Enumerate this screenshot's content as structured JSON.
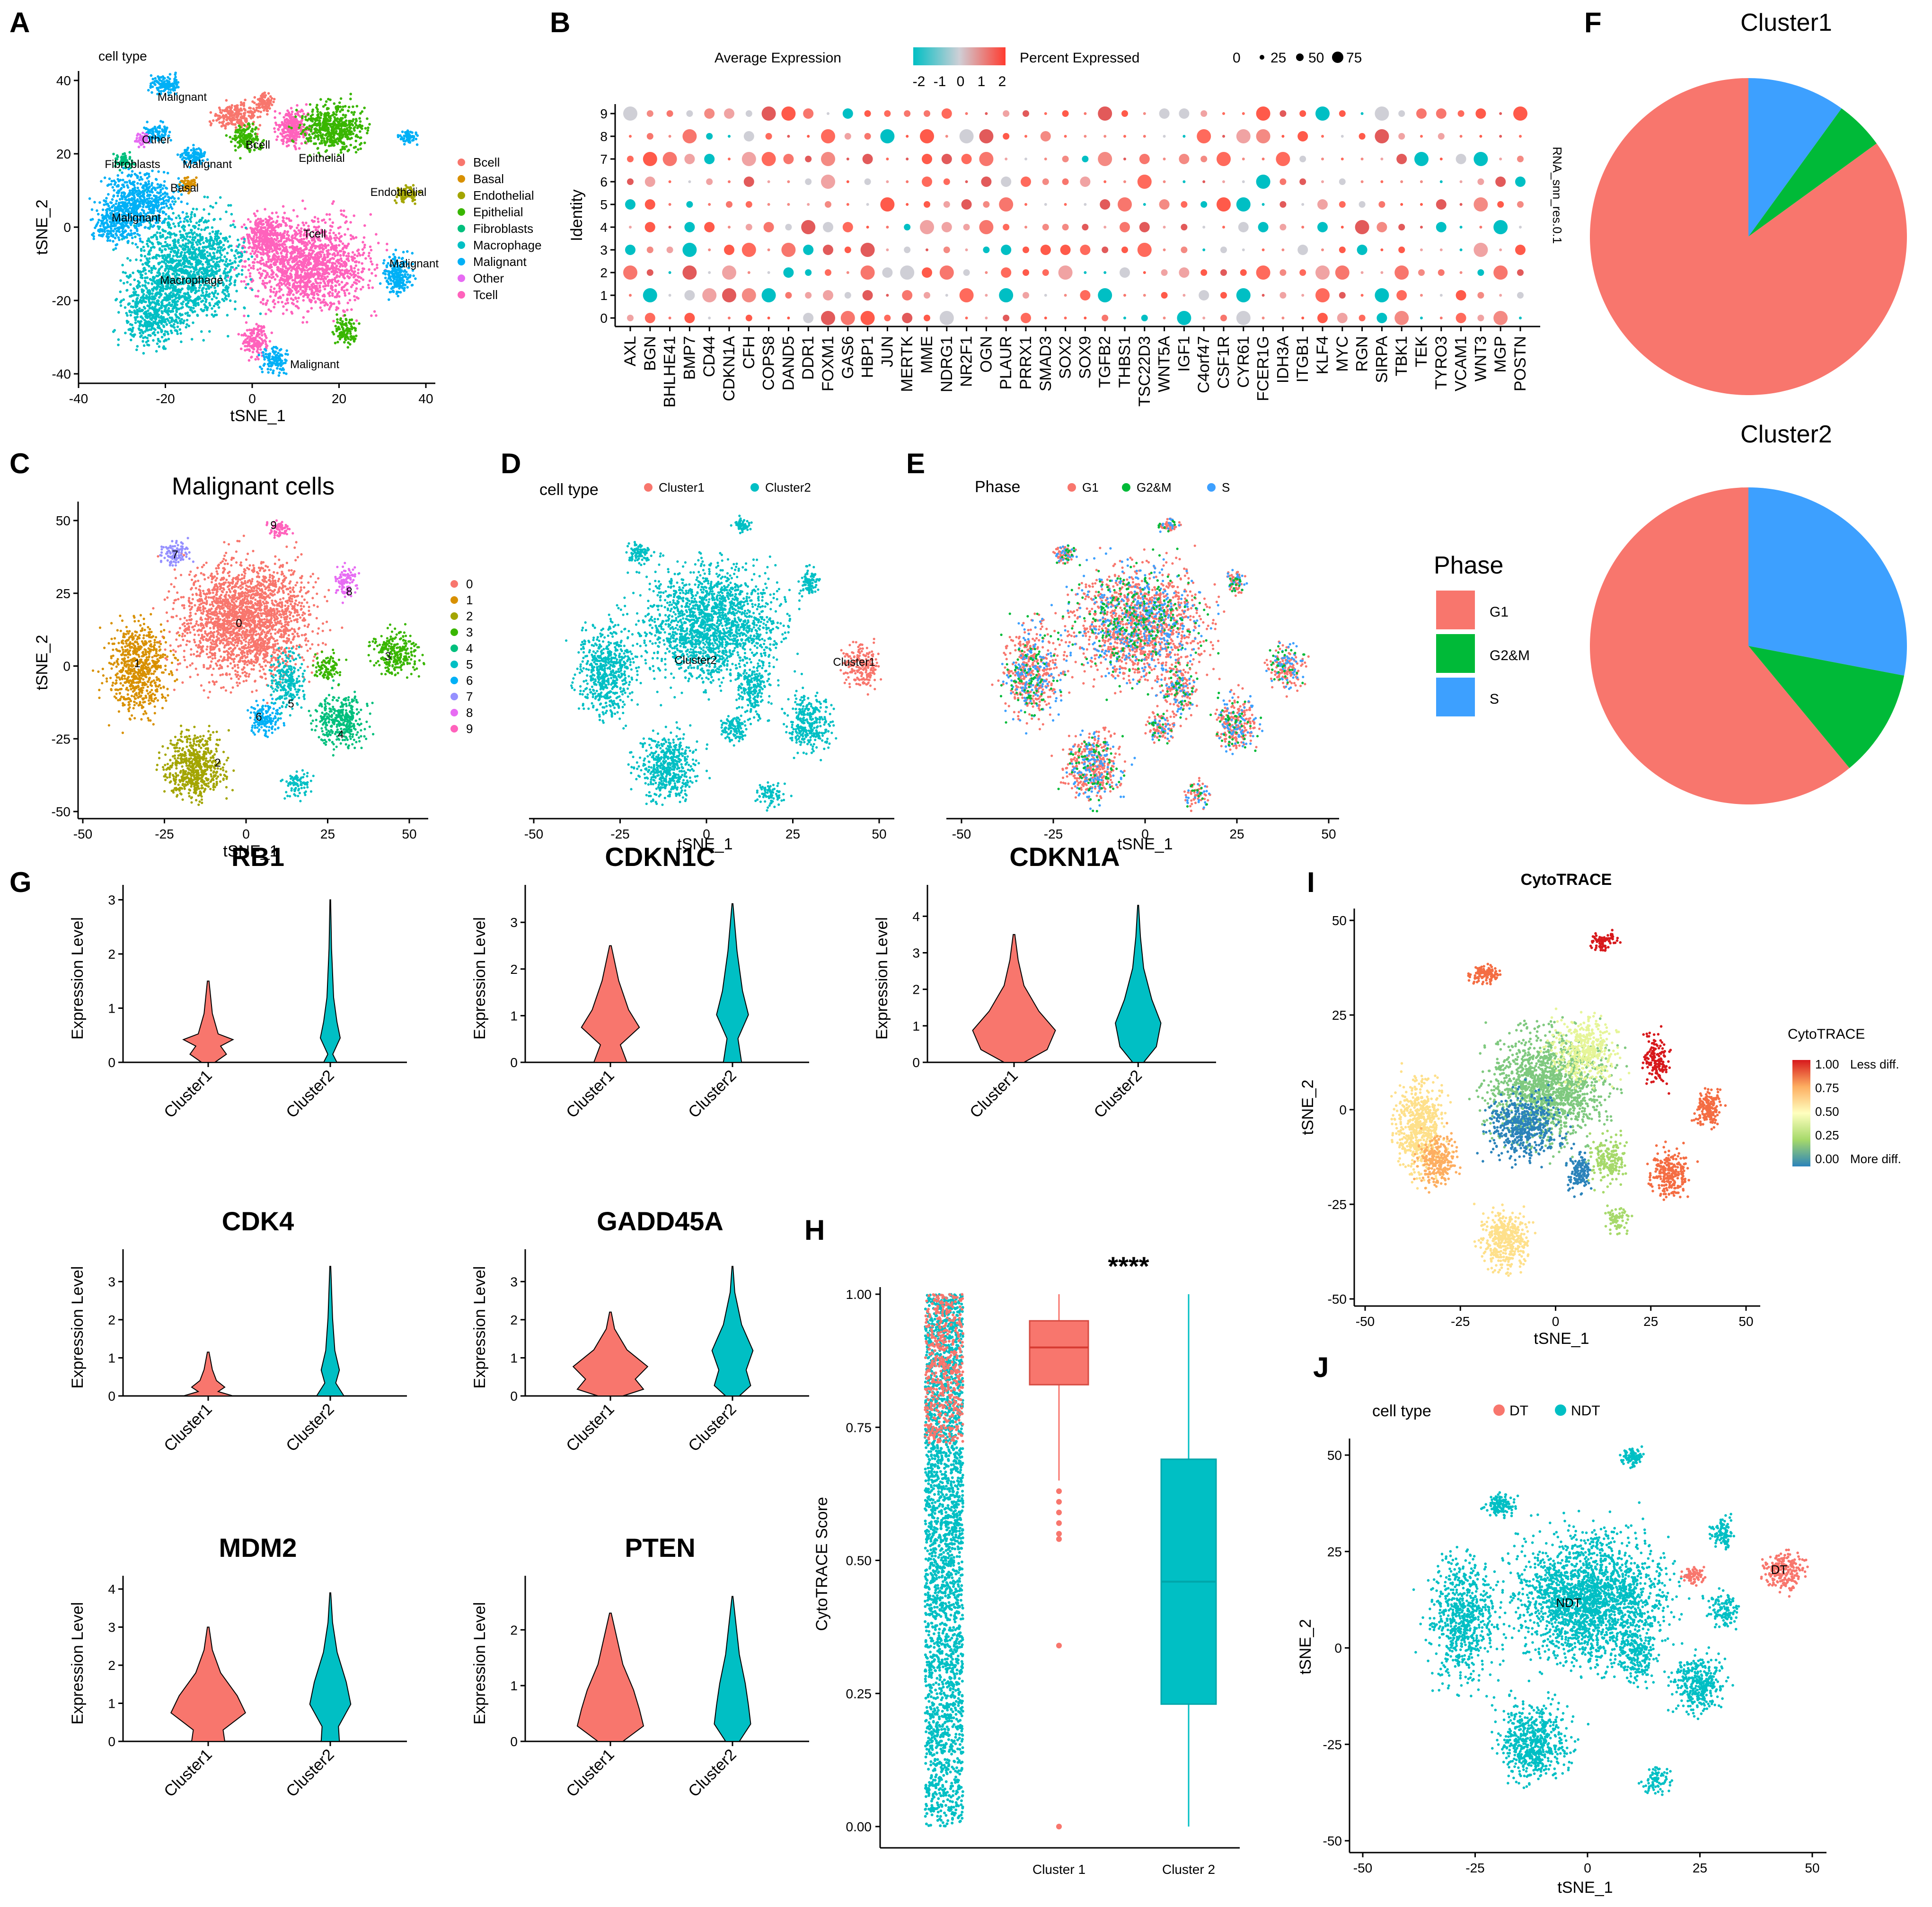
{
  "colors": {
    "bcell": "#F8766D",
    "basal": "#D89000",
    "endothelial": "#A3A500",
    "epithelial": "#39B600",
    "fibroblasts": "#00BF7D",
    "macrophage": "#00BFC4",
    "malignant": "#00B0F6",
    "other": "#E76BF3",
    "tcell": "#FF62BC",
    "cl0": "#F8766D",
    "cl1": "#D89000",
    "cl2": "#A3A500",
    "cl3": "#39B600",
    "cl4": "#00BF7D",
    "cl5": "#00BFC4",
    "cl6": "#00B0F6",
    "cl7": "#9590FF",
    "cl8": "#E76BF3",
    "cl9": "#FF62BC",
    "red": "#F8766D",
    "teal": "#00BFC4",
    "g1": "#F8766D",
    "g2m": "#00BA38",
    "s": "#3DA0FF"
  },
  "chart_data": [
    {
      "panel": "A",
      "type": "scatter",
      "legend_title": "cell type",
      "xlabel": "tSNE_1",
      "ylabel": "tSNE_2",
      "xlim": [
        -40,
        40
      ],
      "ylim": [
        -40,
        40
      ],
      "x_ticks": [
        "-40",
        "-20",
        "0",
        "20",
        "40"
      ],
      "y_ticks": [
        "-40",
        "-20",
        "0",
        "20",
        "40"
      ],
      "legend": [
        "Bcell",
        "Basal",
        "Endothelial",
        "Epithelial",
        "Fibroblasts",
        "Macrophage",
        "Malignant",
        "Other",
        "Tcell"
      ],
      "annotations": [
        "Malignant",
        "Other",
        "Fibroblasts",
        "Malignant",
        "Basal",
        "Bcell",
        "Epithelial",
        "Endothelial",
        "Malignant",
        "Tcell",
        "Macrophage",
        "Malignant",
        "Malignant"
      ]
    },
    {
      "panel": "B",
      "type": "dotplot",
      "xlabel": "",
      "ylabel": "Identity",
      "right_label": "RNA_snn_res.0.1",
      "legend_expr_title": "Average Expression",
      "legend_expr_ticks": [
        "-2",
        "-1",
        "0",
        "1",
        "2"
      ],
      "legend_pct_title": "Percent Expressed",
      "legend_pct_ticks": [
        "0",
        "25",
        "50",
        "75"
      ],
      "genes": [
        "AXL",
        "BGN",
        "BHLHE41",
        "BMP7",
        "CD44",
        "CDKN1A",
        "CFH",
        "COPS8",
        "DAND5",
        "DDR1",
        "FOXM1",
        "GAS6",
        "HBP1",
        "JUN",
        "MERTK",
        "MME",
        "NDRG1",
        "NR2F1",
        "OGN",
        "PLAUR",
        "PRRX1",
        "SMAD3",
        "SOX2",
        "SOX9",
        "TGFB2",
        "THBS1",
        "TSC22D3",
        "WNT5A",
        "IGF1",
        "C4orf47",
        "CSF1R",
        "CYR61",
        "FCER1G",
        "IDH3A",
        "ITGB1",
        "KLF4",
        "MYC",
        "RGN",
        "SIRPA",
        "TBK1",
        "TEK",
        "TYRO3",
        "VCAM1",
        "WNT3",
        "MGP",
        "POSTN"
      ],
      "identities": [
        "9",
        "8",
        "7",
        "6",
        "5",
        "4",
        "3",
        "2",
        "1",
        "0"
      ]
    },
    {
      "panel": "C",
      "type": "scatter",
      "title": "Malignant cells",
      "xlabel": "tSNE_1",
      "ylabel": "tSNE_2",
      "xlim": [
        -50,
        50
      ],
      "ylim": [
        -50,
        50
      ],
      "x_ticks": [
        "-50",
        "-25",
        "0",
        "25",
        "50"
      ],
      "y_ticks": [
        "-50",
        "-25",
        "0",
        "25",
        "50"
      ],
      "legend": [
        "0",
        "1",
        "2",
        "3",
        "4",
        "5",
        "6",
        "7",
        "8",
        "9"
      ]
    },
    {
      "panel": "D",
      "type": "scatter",
      "legend_title": "cell type",
      "legend": [
        "Cluster1",
        "Cluster2"
      ],
      "xlabel": "tSNE_1",
      "x_ticks": [
        "-50",
        "-25",
        "0",
        "25",
        "50"
      ],
      "annotations": [
        "Cluster2",
        "Cluster1"
      ]
    },
    {
      "panel": "E",
      "type": "scatter",
      "legend_title": "Phase",
      "legend": [
        "G1",
        "G2&M",
        "S"
      ],
      "xlabel": "tSNE_1",
      "x_ticks": [
        "-50",
        "-25",
        "0",
        "25",
        "50"
      ]
    },
    {
      "panel": "F",
      "type": "pie",
      "legend_title": "Phase",
      "legend": [
        "G1",
        "G2&M",
        "S"
      ],
      "pies": [
        {
          "title": "Cluster1",
          "slices": [
            {
              "label": "G1",
              "value": 85
            },
            {
              "label": "G2&M",
              "value": 5
            },
            {
              "label": "S",
              "value": 10
            }
          ]
        },
        {
          "title": "Cluster2",
          "slices": [
            {
              "label": "G1",
              "value": 61
            },
            {
              "label": "G2&M",
              "value": 11
            },
            {
              "label": "S",
              "value": 28
            }
          ]
        }
      ]
    },
    {
      "panel": "G",
      "type": "violin",
      "ylabel": "Expression Level",
      "categories": [
        "Cluster1",
        "Cluster2"
      ],
      "genes": [
        {
          "name": "RB1",
          "y_ticks": [
            "0",
            "1",
            "2",
            "3"
          ],
          "ymax": 3.1,
          "tops": [
            1.5,
            3.0
          ]
        },
        {
          "name": "CDKN1C",
          "y_ticks": [
            "0",
            "1",
            "2",
            "3"
          ],
          "ymax": 3.6,
          "tops": [
            2.5,
            3.4
          ]
        },
        {
          "name": "CDKN1A",
          "y_ticks": [
            "0",
            "1",
            "2",
            "3",
            "4"
          ],
          "ymax": 4.6,
          "tops": [
            3.5,
            4.3
          ]
        },
        {
          "name": "CDK4",
          "y_ticks": [
            "0",
            "1",
            "2",
            "3"
          ],
          "ymax": 3.6,
          "tops": [
            1.15,
            3.4
          ]
        },
        {
          "name": "GADD45A",
          "y_ticks": [
            "0",
            "1",
            "2",
            "3"
          ],
          "ymax": 3.6,
          "tops": [
            2.2,
            3.4
          ]
        },
        {
          "name": "MDM2",
          "y_ticks": [
            "0",
            "1",
            "2",
            "3",
            "4"
          ],
          "ymax": 4.1,
          "tops": [
            3.0,
            3.9
          ]
        },
        {
          "name": "PTEN",
          "y_ticks": [
            "0",
            "1",
            "2"
          ],
          "ymax": 2.8,
          "tops": [
            2.3,
            2.6
          ]
        }
      ]
    },
    {
      "panel": "H",
      "type": "box",
      "ylabel": "CytoTRACE Score",
      "significance": "****",
      "y_ticks": [
        "0.00",
        "0.25",
        "0.50",
        "0.75",
        "1.00"
      ],
      "ylim": [
        0,
        1
      ],
      "categories": [
        "Cluster 1",
        "Cluster 2"
      ],
      "boxes": [
        {
          "name": "Cluster 1",
          "q1": 0.83,
          "median": 0.9,
          "q3": 0.95,
          "whisker_low": 0.65,
          "whisker_high": 1.0,
          "outliers": [
            0.63,
            0.61,
            0.59,
            0.57,
            0.55,
            0.54,
            0.34,
            0.0
          ]
        },
        {
          "name": "Cluster 2",
          "q1": 0.23,
          "median": 0.46,
          "q3": 0.69,
          "whisker_low": 0.0,
          "whisker_high": 1.0,
          "outliers": []
        }
      ]
    },
    {
      "panel": "I",
      "type": "scatter",
      "title": "CytoTRACE",
      "xlabel": "tSNE_1",
      "ylabel": "tSNE_2",
      "x_ticks": [
        "-50",
        "-25",
        "0",
        "25",
        "50"
      ],
      "y_ticks": [
        "-50",
        "-25",
        "0",
        "25",
        "50"
      ],
      "legend_title": "CytoTRACE",
      "legend_ticks": [
        "1.00",
        "0.75",
        "0.50",
        "0.25",
        "0.00"
      ],
      "legend_top_note": "Less diff.",
      "legend_bottom_note": "More diff."
    },
    {
      "panel": "J",
      "type": "scatter",
      "legend_title": "cell type",
      "legend": [
        "DT",
        "NDT"
      ],
      "xlabel": "tSNE_1",
      "ylabel": "tSNE_2",
      "x_ticks": [
        "-50",
        "-25",
        "0",
        "25",
        "50"
      ],
      "y_ticks": [
        "-50",
        "-25",
        "0",
        "25",
        "50"
      ],
      "annotations": [
        "NDT",
        "DT"
      ]
    }
  ]
}
